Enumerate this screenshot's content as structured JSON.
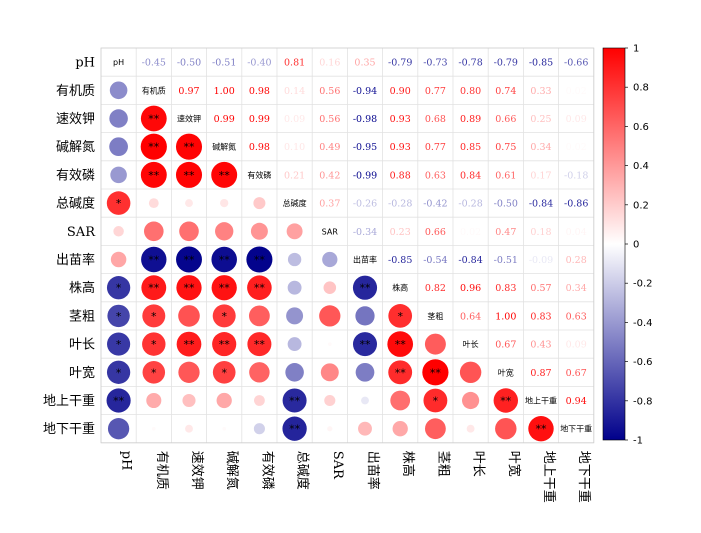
{
  "chart_data": {
    "type": "heatmap",
    "variables": [
      "pH",
      "有机质",
      "速效钾",
      "碱解氮",
      "有效磷",
      "总碱度",
      "SAR",
      "出苗率",
      "株高",
      "茎粗",
      "叶长",
      "叶宽",
      "地上干重",
      "地下干重"
    ],
    "matrix": [
      [
        1,
        -0.45,
        -0.5,
        -0.51,
        -0.4,
        0.81,
        0.16,
        0.35,
        -0.79,
        -0.73,
        -0.78,
        -0.79,
        -0.85,
        -0.66
      ],
      [
        -0.45,
        1,
        0.97,
        1.0,
        0.98,
        0.14,
        0.56,
        -0.94,
        0.9,
        0.77,
        0.8,
        0.74,
        0.33,
        0.02
      ],
      [
        -0.5,
        0.97,
        1,
        0.99,
        0.99,
        0.09,
        0.56,
        -0.98,
        0.93,
        0.68,
        0.89,
        0.66,
        0.25,
        0.09
      ],
      [
        -0.51,
        1.0,
        0.99,
        1,
        0.98,
        0.1,
        0.49,
        -0.95,
        0.93,
        0.77,
        0.85,
        0.75,
        0.34,
        0.02
      ],
      [
        -0.4,
        0.98,
        0.99,
        0.98,
        1,
        0.21,
        0.42,
        -0.99,
        0.88,
        0.63,
        0.84,
        0.61,
        0.17,
        -0.18
      ],
      [
        0.81,
        0.14,
        0.09,
        0.1,
        0.21,
        1,
        0.37,
        -0.26,
        -0.28,
        -0.42,
        -0.28,
        -0.5,
        -0.84,
        -0.86
      ],
      [
        0.16,
        0.56,
        0.56,
        0.49,
        0.42,
        0.37,
        1,
        -0.34,
        0.23,
        0.66,
        0.02,
        0.47,
        0.18,
        0.04
      ],
      [
        0.35,
        -0.94,
        -0.98,
        -0.95,
        -0.99,
        -0.26,
        -0.34,
        1,
        -0.85,
        -0.54,
        -0.84,
        -0.51,
        -0.09,
        0.28
      ],
      [
        -0.79,
        0.9,
        0.93,
        0.93,
        0.88,
        -0.28,
        0.23,
        -0.85,
        1,
        0.82,
        0.96,
        0.83,
        0.57,
        0.34
      ],
      [
        -0.73,
        0.77,
        0.68,
        0.77,
        0.63,
        -0.42,
        0.66,
        -0.54,
        0.82,
        1,
        0.64,
        1.0,
        0.83,
        0.63
      ],
      [
        -0.78,
        0.8,
        0.89,
        0.85,
        0.84,
        -0.28,
        0.02,
        -0.84,
        0.96,
        0.64,
        1,
        0.67,
        0.43,
        0.09
      ],
      [
        -0.79,
        0.74,
        0.66,
        0.75,
        0.61,
        -0.5,
        0.47,
        -0.51,
        0.83,
        1.0,
        0.67,
        1,
        0.87,
        0.67
      ],
      [
        -0.85,
        0.33,
        0.25,
        0.34,
        0.17,
        -0.84,
        0.18,
        -0.09,
        0.57,
        0.83,
        0.43,
        0.87,
        1,
        0.94
      ],
      [
        -0.66,
        0.02,
        0.09,
        0.02,
        -0.18,
        -0.86,
        0.04,
        0.28,
        0.34,
        0.63,
        0.09,
        0.67,
        0.94,
        1
      ]
    ],
    "significance": [
      [
        "",
        "",
        "",
        "",
        "",
        "",
        "",
        "",
        "",
        "",
        "",
        "",
        "",
        ""
      ],
      [
        "",
        "",
        "",
        "",
        "",
        "",
        "",
        "",
        "",
        "",
        "",
        "",
        "",
        ""
      ],
      [
        "",
        "**",
        "",
        "",
        "",
        "",
        "",
        "",
        "",
        "",
        "",
        "",
        "",
        ""
      ],
      [
        "",
        "**",
        "**",
        "",
        "",
        "",
        "",
        "",
        "",
        "",
        "",
        "",
        "",
        ""
      ],
      [
        "",
        "**",
        "**",
        "**",
        "",
        "",
        "",
        "",
        "",
        "",
        "",
        "",
        "",
        ""
      ],
      [
        "*",
        "",
        "",
        "",
        "",
        "",
        "",
        "",
        "",
        "",
        "",
        "",
        "",
        ""
      ],
      [
        "",
        "",
        "",
        "",
        "",
        "",
        "",
        "",
        "",
        "",
        "",
        "",
        "",
        ""
      ],
      [
        "",
        "**",
        "**",
        "**",
        "**",
        "",
        "",
        "",
        "",
        "",
        "",
        "",
        "",
        ""
      ],
      [
        "*",
        "**",
        "**",
        "**",
        "**",
        "",
        "",
        "**",
        "",
        "",
        "",
        "",
        "",
        ""
      ],
      [
        "*",
        "*",
        "",
        "*",
        "",
        "",
        "",
        "",
        "*",
        "",
        "",
        "",
        "",
        ""
      ],
      [
        "*",
        "*",
        "**",
        "**",
        "**",
        "",
        "",
        "**",
        "**",
        "",
        "",
        "",
        "",
        ""
      ],
      [
        "*",
        "*",
        "",
        "*",
        "",
        "",
        "",
        "",
        "**",
        "**",
        "",
        "",
        "",
        ""
      ],
      [
        "**",
        "",
        "",
        "",
        "",
        "**",
        "",
        "",
        "",
        "*",
        "",
        "**",
        "",
        ""
      ],
      [
        "",
        "",
        "",
        "",
        "",
        "**",
        "",
        "",
        "",
        "",
        "",
        "",
        "**",
        ""
      ]
    ],
    "colorbar": {
      "ticks": [
        "1",
        "0.8",
        "0.6",
        "0.4",
        "0.2",
        "0",
        "-0.2",
        "-0.4",
        "-0.6",
        "-0.8",
        "-1"
      ],
      "range": [
        -1,
        1
      ]
    },
    "colors": {
      "negative": "#00008b",
      "zero": "#ffffff",
      "positive": "#ff0000"
    },
    "lower_triangle": "circles",
    "upper_triangle": "numbers",
    "diagonal": "variable names"
  }
}
